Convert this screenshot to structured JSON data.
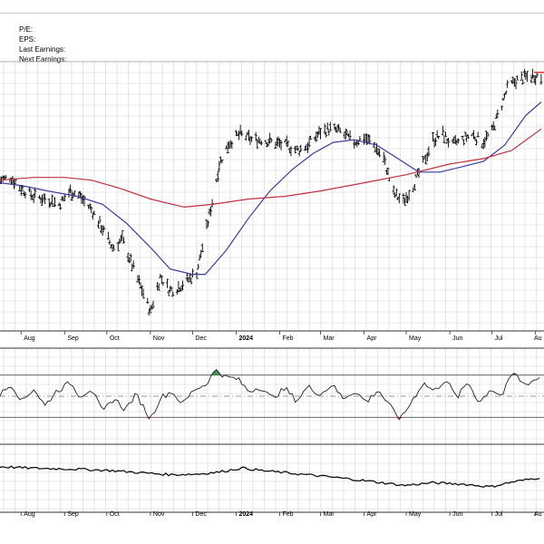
{
  "info_panel": {
    "pe_label": "P/E:",
    "eps_label": "EPS:",
    "last_earnings_label": "Last Earnings:",
    "next_earnings_label": "Next Earnings:"
  },
  "colors": {
    "price_bars": "#000000",
    "ma_short": "#3c3c9c",
    "ma_long": "#c03040",
    "resistance_line": "#dd2222",
    "osc_overbought_fill": "#3a8a4a",
    "osc_oversold_fill": "#cc3322",
    "grid": "#d6d6d6",
    "panel_border": "#333333"
  },
  "chart_data": [
    {
      "type": "line",
      "panel": "price",
      "subtype": "ohlc-bars-with-moving-averages",
      "x_tick_labels": [
        "Aug",
        "Sep",
        "Oct",
        "Nov",
        "Dec",
        "2024",
        "Feb",
        "Mar",
        "Apr",
        "May",
        "Jun",
        "Jul",
        "Au"
      ],
      "x_tick_dates": [
        "2023-08",
        "2023-09",
        "2023-10",
        "2023-11",
        "2023-12",
        "2024-01",
        "2024-02",
        "2024-03",
        "2024-04",
        "2024-05",
        "2024-06",
        "2024-07",
        "2024-08"
      ],
      "y_tick_labels": [],
      "grid": true,
      "price_path_points": [
        [
          "2023-07-17",
          0.8
        ],
        [
          "2023-07-25",
          0.81
        ],
        [
          "2023-08-01",
          0.77
        ],
        [
          "2023-08-10",
          0.74
        ],
        [
          "2023-08-20",
          0.73
        ],
        [
          "2023-08-28",
          0.71
        ],
        [
          "2023-09-05",
          0.76
        ],
        [
          "2023-09-12",
          0.74
        ],
        [
          "2023-09-20",
          0.69
        ],
        [
          "2023-09-28",
          0.62
        ],
        [
          "2023-10-05",
          0.55
        ],
        [
          "2023-10-12",
          0.58
        ],
        [
          "2023-10-20",
          0.47
        ],
        [
          "2023-10-27",
          0.38
        ],
        [
          "2023-11-01",
          0.31
        ],
        [
          "2023-11-08",
          0.44
        ],
        [
          "2023-11-15",
          0.39
        ],
        [
          "2023-11-20",
          0.4
        ],
        [
          "2023-11-28",
          0.43
        ],
        [
          "2023-12-04",
          0.46
        ],
        [
          "2023-12-11",
          0.62
        ],
        [
          "2023-12-15",
          0.72
        ],
        [
          "2023-12-20",
          0.86
        ],
        [
          "2023-12-27",
          0.94
        ],
        [
          "2024-01-04",
          0.97
        ],
        [
          "2024-01-12",
          0.95
        ],
        [
          "2024-01-20",
          0.95
        ],
        [
          "2024-01-28",
          0.94
        ],
        [
          "2024-02-05",
          0.93
        ],
        [
          "2024-02-14",
          0.91
        ],
        [
          "2024-02-21",
          0.93
        ],
        [
          "2024-03-01",
          0.98
        ],
        [
          "2024-03-08",
          0.99
        ],
        [
          "2024-03-15",
          0.98
        ],
        [
          "2024-03-25",
          0.94
        ],
        [
          "2024-04-01",
          0.96
        ],
        [
          "2024-04-08",
          0.93
        ],
        [
          "2024-04-15",
          0.88
        ],
        [
          "2024-04-22",
          0.75
        ],
        [
          "2024-04-29",
          0.72
        ],
        [
          "2024-05-06",
          0.78
        ],
        [
          "2024-05-13",
          0.86
        ],
        [
          "2024-05-20",
          0.95
        ],
        [
          "2024-05-27",
          0.97
        ],
        [
          "2024-06-03",
          0.93
        ],
        [
          "2024-06-10",
          0.95
        ],
        [
          "2024-06-17",
          0.97
        ],
        [
          "2024-06-24",
          0.94
        ],
        [
          "2024-07-01",
          0.98
        ],
        [
          "2024-07-08",
          1.08
        ],
        [
          "2024-07-12",
          1.14
        ],
        [
          "2024-07-18",
          1.17
        ],
        [
          "2024-07-24",
          1.18
        ],
        [
          "2024-07-31",
          1.19
        ],
        [
          "2024-08-05",
          1.18
        ]
      ],
      "series": [
        {
          "kind": "ma_short",
          "points": [
            [
              "2023-07-17",
              0.79
            ],
            [
              "2023-08-01",
              0.78
            ],
            [
              "2023-08-20",
              0.76
            ],
            [
              "2023-09-10",
              0.74
            ],
            [
              "2023-09-28",
              0.71
            ],
            [
              "2023-10-15",
              0.64
            ],
            [
              "2023-11-01",
              0.55
            ],
            [
              "2023-11-15",
              0.47
            ],
            [
              "2023-12-01",
              0.45
            ],
            [
              "2023-12-10",
              0.45
            ],
            [
              "2023-12-25",
              0.54
            ],
            [
              "2024-01-10",
              0.66
            ],
            [
              "2024-01-25",
              0.76
            ],
            [
              "2024-02-10",
              0.84
            ],
            [
              "2024-02-25",
              0.9
            ],
            [
              "2024-03-10",
              0.94
            ],
            [
              "2024-03-25",
              0.95
            ],
            [
              "2024-04-10",
              0.93
            ],
            [
              "2024-04-25",
              0.88
            ],
            [
              "2024-05-10",
              0.83
            ],
            [
              "2024-05-25",
              0.83
            ],
            [
              "2024-06-10",
              0.85
            ],
            [
              "2024-06-25",
              0.87
            ],
            [
              "2024-07-10",
              0.93
            ],
            [
              "2024-07-25",
              1.04
            ],
            [
              "2024-08-05",
              1.09
            ]
          ]
        },
        {
          "kind": "ma_long",
          "points": [
            [
              "2023-07-17",
              0.8
            ],
            [
              "2023-08-10",
              0.81
            ],
            [
              "2023-09-01",
              0.81
            ],
            [
              "2023-09-20",
              0.8
            ],
            [
              "2023-10-10",
              0.77
            ],
            [
              "2023-11-01",
              0.73
            ],
            [
              "2023-11-25",
              0.7
            ],
            [
              "2023-12-15",
              0.71
            ],
            [
              "2024-01-10",
              0.73
            ],
            [
              "2024-02-05",
              0.74
            ],
            [
              "2024-03-01",
              0.76
            ],
            [
              "2024-04-01",
              0.79
            ],
            [
              "2024-05-01",
              0.82
            ],
            [
              "2024-06-01",
              0.86
            ],
            [
              "2024-06-25",
              0.88
            ],
            [
              "2024-07-15",
              0.91
            ],
            [
              "2024-08-05",
              0.99
            ]
          ]
        }
      ],
      "resistance_level": {
        "from": "2024-07-31",
        "to": "2024-08-05",
        "level": 1.2
      }
    },
    {
      "type": "line",
      "panel": "oscillator",
      "grid": true,
      "upper_band": 0.72,
      "lower_band": 0.28,
      "center_line": 0.5,
      "points": [
        [
          "2023-07-17",
          0.52
        ],
        [
          "2023-07-25",
          0.62
        ],
        [
          "2023-08-02",
          0.45
        ],
        [
          "2023-08-10",
          0.58
        ],
        [
          "2023-08-18",
          0.4
        ],
        [
          "2023-08-26",
          0.55
        ],
        [
          "2023-09-05",
          0.64
        ],
        [
          "2023-09-12",
          0.5
        ],
        [
          "2023-09-20",
          0.58
        ],
        [
          "2023-09-28",
          0.33
        ],
        [
          "2023-10-06",
          0.48
        ],
        [
          "2023-10-14",
          0.36
        ],
        [
          "2023-10-22",
          0.52
        ],
        [
          "2023-11-01",
          0.26
        ],
        [
          "2023-11-08",
          0.48
        ],
        [
          "2023-11-16",
          0.55
        ],
        [
          "2023-11-24",
          0.42
        ],
        [
          "2023-12-02",
          0.57
        ],
        [
          "2023-12-10",
          0.62
        ],
        [
          "2023-12-18",
          0.78
        ],
        [
          "2023-12-24",
          0.7
        ],
        [
          "2024-01-02",
          0.68
        ],
        [
          "2024-01-10",
          0.55
        ],
        [
          "2024-01-18",
          0.6
        ],
        [
          "2024-01-26",
          0.48
        ],
        [
          "2024-02-05",
          0.58
        ],
        [
          "2024-02-13",
          0.45
        ],
        [
          "2024-02-21",
          0.6
        ],
        [
          "2024-03-01",
          0.52
        ],
        [
          "2024-03-09",
          0.62
        ],
        [
          "2024-03-17",
          0.48
        ],
        [
          "2024-03-25",
          0.55
        ],
        [
          "2024-04-03",
          0.44
        ],
        [
          "2024-04-11",
          0.57
        ],
        [
          "2024-04-19",
          0.4
        ],
        [
          "2024-04-27",
          0.26
        ],
        [
          "2024-05-05",
          0.45
        ],
        [
          "2024-05-13",
          0.64
        ],
        [
          "2024-05-21",
          0.55
        ],
        [
          "2024-05-29",
          0.68
        ],
        [
          "2024-06-06",
          0.48
        ],
        [
          "2024-06-14",
          0.65
        ],
        [
          "2024-06-22",
          0.43
        ],
        [
          "2024-06-30",
          0.58
        ],
        [
          "2024-07-08",
          0.5
        ],
        [
          "2024-07-16",
          0.75
        ],
        [
          "2024-07-24",
          0.62
        ],
        [
          "2024-08-05",
          0.7
        ]
      ]
    },
    {
      "type": "line",
      "panel": "lower",
      "grid": true,
      "points": [
        [
          "2023-07-17",
          0.68
        ],
        [
          "2023-08-05",
          0.66
        ],
        [
          "2023-08-25",
          0.65
        ],
        [
          "2023-09-15",
          0.64
        ],
        [
          "2023-10-05",
          0.62
        ],
        [
          "2023-10-25",
          0.59
        ],
        [
          "2023-11-15",
          0.56
        ],
        [
          "2023-12-05",
          0.57
        ],
        [
          "2023-12-20",
          0.6
        ],
        [
          "2024-01-05",
          0.66
        ],
        [
          "2024-01-20",
          0.62
        ],
        [
          "2024-02-10",
          0.58
        ],
        [
          "2024-03-01",
          0.54
        ],
        [
          "2024-03-20",
          0.5
        ],
        [
          "2024-04-10",
          0.45
        ],
        [
          "2024-04-30",
          0.4
        ],
        [
          "2024-05-20",
          0.44
        ],
        [
          "2024-06-10",
          0.42
        ],
        [
          "2024-06-30",
          0.38
        ],
        [
          "2024-07-15",
          0.45
        ],
        [
          "2024-08-05",
          0.52
        ]
      ]
    }
  ]
}
